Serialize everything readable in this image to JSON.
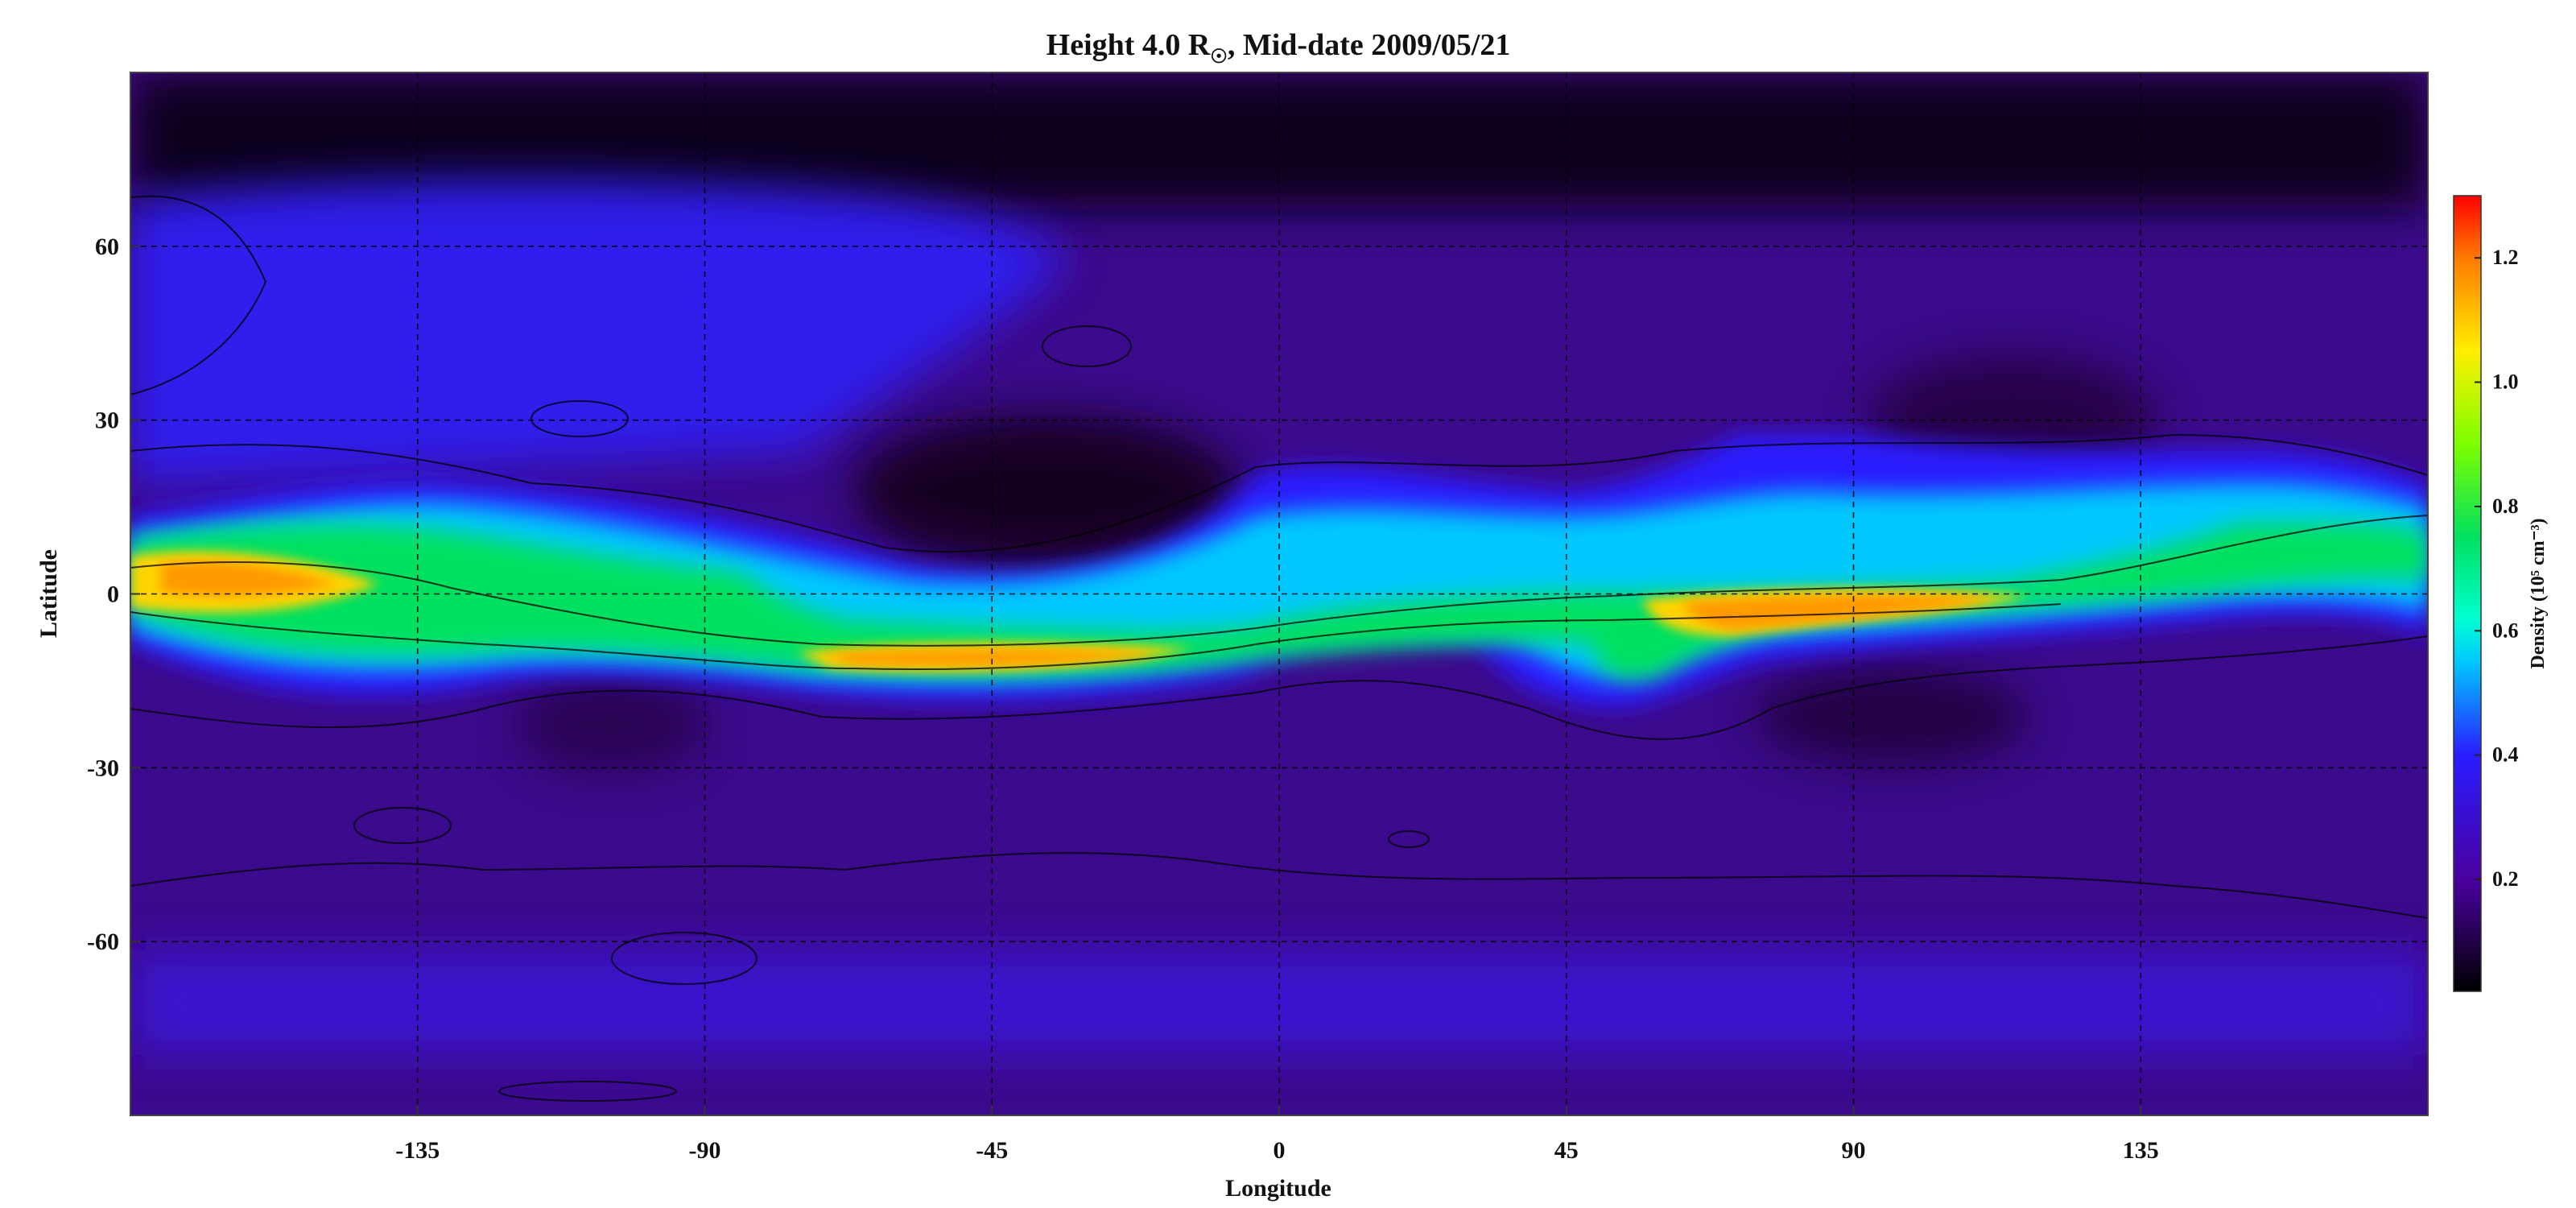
{
  "chart_data": {
    "type": "heatmap",
    "title": {
      "prefix": "Height 4.0 R",
      "subscript": "☉",
      "suffix": ", Mid-date 2009/05/21"
    },
    "xlabel": "Longitude",
    "ylabel": "Latitude",
    "xlim": [
      -180,
      180
    ],
    "ylim": [
      -90,
      90
    ],
    "xticks": [
      -135,
      -90,
      -45,
      0,
      45,
      90,
      135
    ],
    "yticks": [
      60,
      30,
      0,
      -30,
      -60
    ],
    "grid": true,
    "colorbar": {
      "label": "Density (10⁵ cm⁻³)",
      "range": [
        0.02,
        1.3
      ],
      "ticks": [
        0.2,
        0.4,
        0.6,
        0.8,
        1.0,
        1.2
      ],
      "tick_labels": [
        "0.2",
        "0.4",
        "0.6",
        "0.8",
        "1.0",
        "1.2"
      ],
      "colormap_stops": [
        {
          "v": 0.02,
          "color": "#000000"
        },
        {
          "v": 0.2,
          "color": "#4a00a0"
        },
        {
          "v": 0.4,
          "color": "#2a1cff"
        },
        {
          "v": 0.55,
          "color": "#00c8ff"
        },
        {
          "v": 0.62,
          "color": "#00ffd0"
        },
        {
          "v": 0.75,
          "color": "#00e060"
        },
        {
          "v": 0.9,
          "color": "#7cff00"
        },
        {
          "v": 1.05,
          "color": "#ffee00"
        },
        {
          "v": 1.2,
          "color": "#ff7a00"
        },
        {
          "v": 1.3,
          "color": "#ff0000"
        }
      ]
    },
    "current_sheet": {
      "description_points_lon": [
        -180,
        -150,
        -135,
        -110,
        -90,
        -70,
        -45,
        -20,
        0,
        20,
        45,
        70,
        90,
        110,
        135,
        160,
        180
      ],
      "center_latitude": [
        4,
        2,
        1,
        -3,
        -6,
        -10,
        -12,
        -9,
        -3,
        0,
        0,
        -2,
        -1,
        1,
        3,
        6,
        6
      ]
    }
  }
}
